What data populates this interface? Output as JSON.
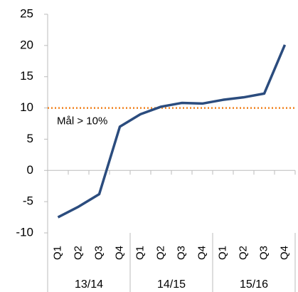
{
  "chart_data": {
    "type": "line",
    "categories": [
      "Q1",
      "Q2",
      "Q3",
      "Q4",
      "Q1",
      "Q2",
      "Q3",
      "Q4",
      "Q1",
      "Q2",
      "Q3",
      "Q4"
    ],
    "groups": [
      "13/14",
      "14/15",
      "15/16"
    ],
    "series": [
      {
        "color": "#2b4c7e",
        "values": [
          -7.5,
          -5.8,
          -3.8,
          7.0,
          9.0,
          10.2,
          10.8,
          10.7,
          11.3,
          11.7,
          12.3,
          20.1
        ]
      }
    ],
    "target": {
      "value": 10,
      "label": "Mål > 10%",
      "color": "#f0821e"
    },
    "ylim": [
      -10,
      25
    ],
    "yticks": [
      -10,
      -5,
      0,
      5,
      10,
      15,
      20,
      25
    ],
    "grid": false
  }
}
